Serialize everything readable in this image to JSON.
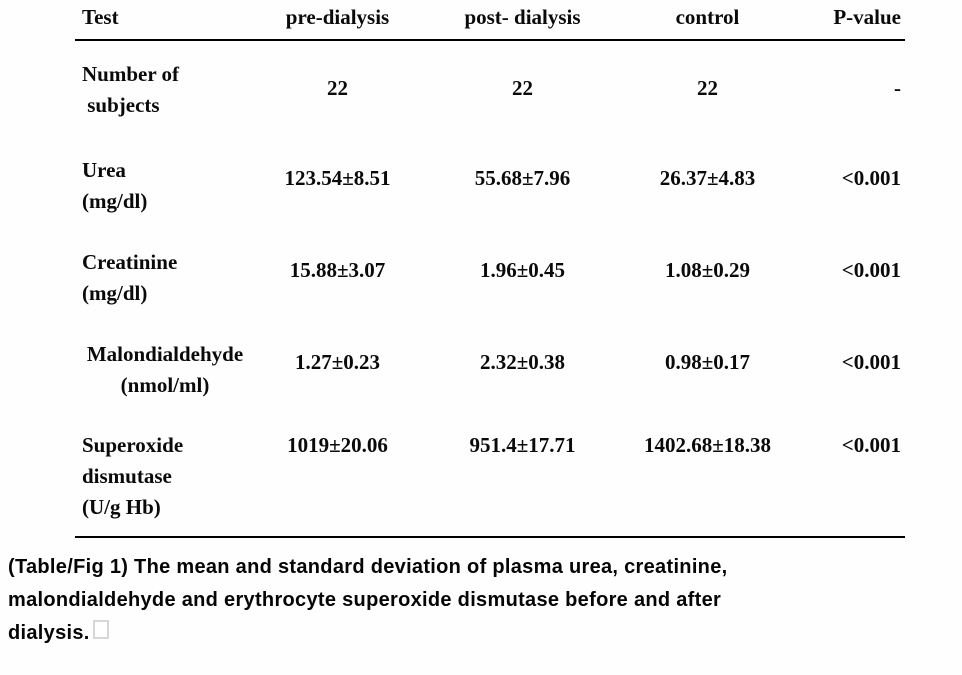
{
  "table": {
    "headers": [
      "Test",
      "pre-dialysis",
      "post- dialysis",
      "control",
      "P-value"
    ],
    "rows": [
      {
        "test": "Number of\n subjects",
        "pre_dialysis": "22",
        "post_dialysis": "22",
        "control": "22",
        "p_value": "-"
      },
      {
        "test": "Urea\n(mg/dl)",
        "pre_dialysis": "123.54±8.51",
        "post_dialysis": "55.68±7.96",
        "control": "26.37±4.83",
        "p_value": "<0.001"
      },
      {
        "test": "Creatinine\n(mg/dl)",
        "pre_dialysis": "15.88±3.07",
        "post_dialysis": "1.96±0.45",
        "control": "1.08±0.29",
        "p_value": "<0.001"
      },
      {
        "test": "Malondialdehyde\n(nmol/ml)",
        "pre_dialysis": "1.27±0.23",
        "post_dialysis": "2.32±0.38",
        "control": "0.98±0.17",
        "p_value": "<0.001"
      },
      {
        "test": "Superoxide\ndismutase\n(U/g Hb)",
        "pre_dialysis": "1019±20.06",
        "post_dialysis": "951.4±17.71",
        "control": "1402.68±18.38",
        "p_value": "<0.001"
      }
    ]
  },
  "caption": {
    "text": "(Table/Fig 1) The mean and standard deviation of plasma urea, creatinine,\nmalondialdehyde and erythrocyte superoxide dismutase before and after\ndialysis."
  },
  "colors": {
    "text": "#0a0a0a",
    "rule": "#000000",
    "background": "#fefefe",
    "missing_glyph_border": "#d7d7d7"
  },
  "chart_data": {
    "type": "table",
    "title": "(Table/Fig 1) The mean and standard deviation of plasma urea, creatinine, malondialdehyde and erythrocyte superoxide dismutase before and after dialysis.",
    "columns": [
      "Test",
      "pre-dialysis",
      "post- dialysis",
      "control",
      "P-value"
    ],
    "rows": [
      [
        "Number of subjects",
        "22",
        "22",
        "22",
        "-"
      ],
      [
        "Urea (mg/dl)",
        "123.54±8.51",
        "55.68±7.96",
        "26.37±4.83",
        "<0.001"
      ],
      [
        "Creatinine (mg/dl)",
        "15.88±3.07",
        "1.96±0.45",
        "1.08±0.29",
        "<0.001"
      ],
      [
        "Malondialdehyde (nmol/ml)",
        "1.27±0.23",
        "2.32±0.38",
        "0.98±0.17",
        "<0.001"
      ],
      [
        "Superoxide dismutase (U/g Hb)",
        "1019±20.06",
        "951.4±17.71",
        "1402.68±18.38",
        "<0.001"
      ]
    ]
  }
}
